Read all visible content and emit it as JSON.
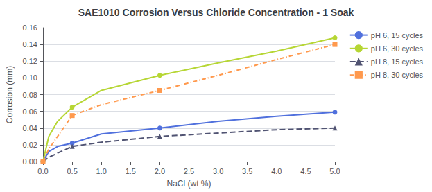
{
  "chart_data": {
    "type": "line",
    "title": "SAE1010 Corrosion Versus Chloride Concentration - 1 Soak",
    "x_label": "NaCl (wt %)",
    "y_label": "Corrosion (mm)",
    "x": [
      0,
      0.1,
      0.25,
      0.5,
      1.0,
      2.0,
      3.0,
      4.0,
      5.0
    ],
    "series": [
      {
        "name": "pH 6, 15 cycles",
        "values": [
          0,
          0.012,
          0.018,
          0.022,
          0.033,
          0.04,
          0.048,
          0.054,
          0.059
        ],
        "marker": "circle",
        "line_style": "solid",
        "marker_x": [
          0,
          0.5,
          2.0,
          5.0
        ]
      },
      {
        "name": "pH 6, 30 cycles",
        "values": [
          0,
          0.03,
          0.048,
          0.065,
          0.085,
          0.103,
          0.118,
          0.132,
          0.148
        ],
        "marker": "circle",
        "line_style": "solid",
        "marker_x": [
          0,
          0.5,
          2.0,
          5.0
        ]
      },
      {
        "name": "pH 8, 15 cycles",
        "values": [
          0,
          0.005,
          0.01,
          0.018,
          0.023,
          0.03,
          0.034,
          0.038,
          0.04
        ],
        "marker": "triangle",
        "line_style": "dashed",
        "marker_x": [
          0,
          0.5,
          2.0,
          5.0
        ]
      },
      {
        "name": "pH 8, 30 cycles",
        "values": [
          0,
          0.015,
          0.03,
          0.055,
          0.068,
          0.085,
          0.103,
          0.122,
          0.14
        ],
        "marker": "square",
        "line_style": "dashdot",
        "marker_x": [
          0,
          0.5,
          2.0,
          5.0
        ]
      }
    ],
    "xlim": [
      0,
      5
    ],
    "xticks": [
      {
        "value": 0,
        "label": "0.0"
      },
      0.5,
      {
        "value": 1,
        "label": "1.0"
      },
      1.5,
      {
        "value": 2,
        "label": "2.0"
      },
      2.5,
      {
        "value": 3,
        "label": "3.0"
      },
      3.5,
      {
        "value": 4,
        "label": "4.0"
      },
      4.5,
      {
        "value": 5,
        "label": "5.0"
      }
    ],
    "ylim": [
      0,
      0.16
    ],
    "yticks": [
      {
        "value": 0,
        "label": "0.00"
      },
      {
        "value": 0.02,
        "label": "0.02"
      },
      {
        "value": 0.04,
        "label": "0.04"
      },
      {
        "value": 0.06,
        "label": "0.06"
      },
      {
        "value": 0.08,
        "label": "0.08"
      },
      {
        "value": 0.1,
        "label": "0.10"
      },
      {
        "value": 0.12,
        "label": "0.12"
      },
      {
        "value": 0.14,
        "label": "0.14"
      },
      {
        "value": 0.16,
        "label": "0.16"
      }
    ],
    "grid": true,
    "legend": "right"
  }
}
